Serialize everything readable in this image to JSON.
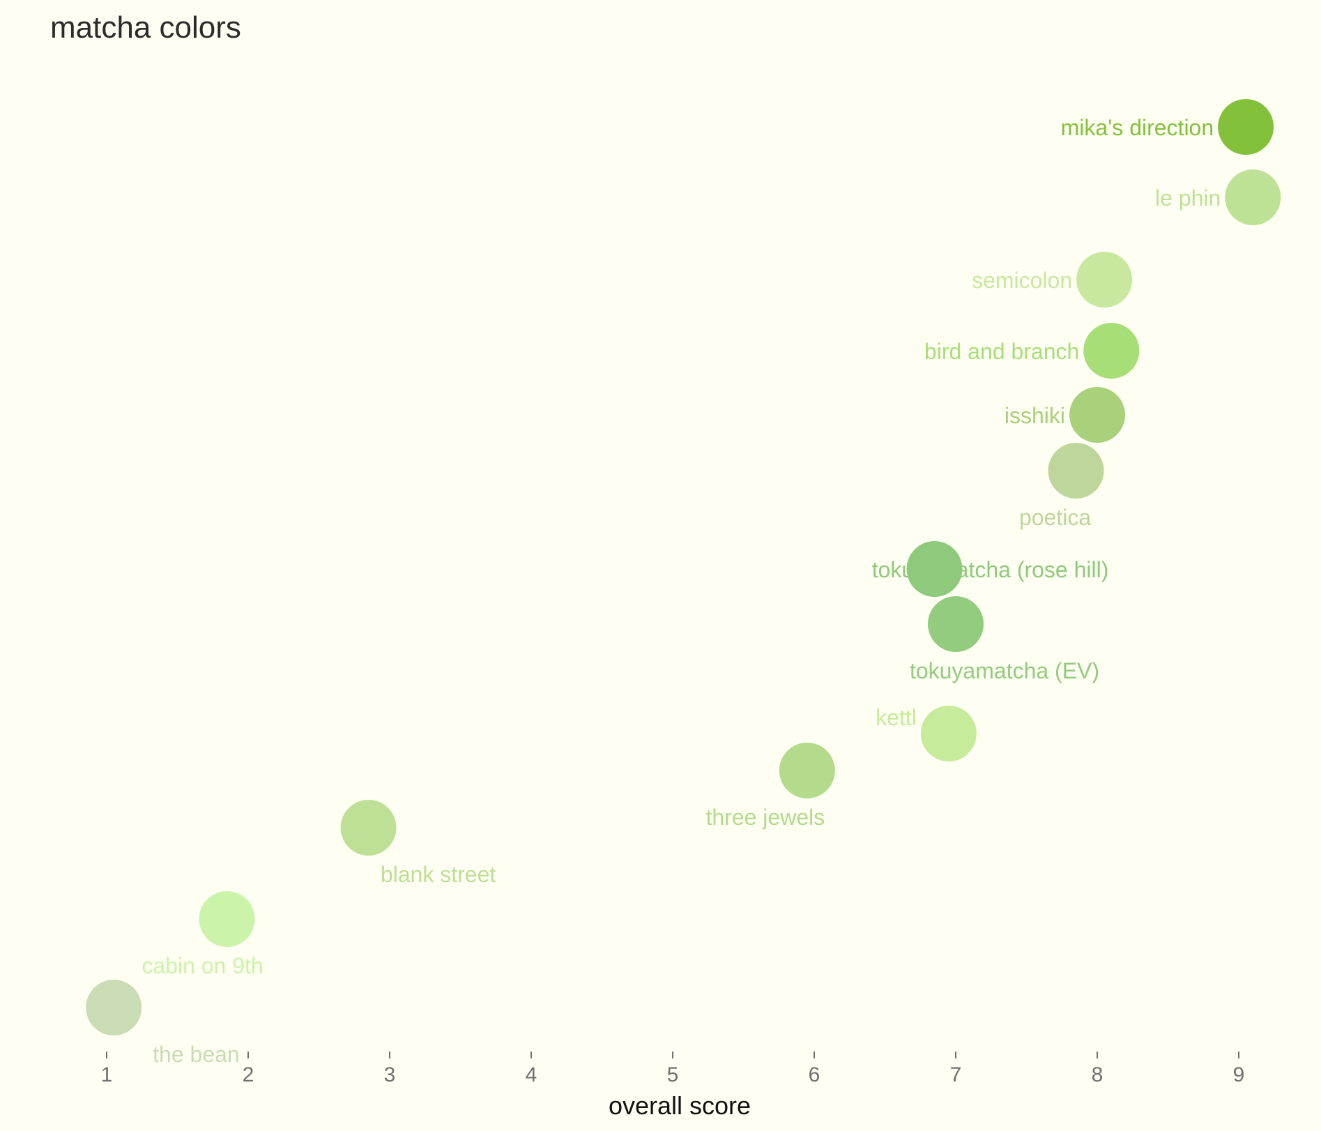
{
  "chart_data": {
    "type": "scatter",
    "title": "matcha colors",
    "xlabel": "overall score",
    "ylabel": "",
    "xlim": [
      0.4,
      9.5
    ],
    "xticks": [
      "1",
      "2",
      "3",
      "4",
      "5",
      "6",
      "7",
      "8",
      "9"
    ],
    "grid": false,
    "legend": "none",
    "points": [
      {
        "label": "mika's direction",
        "x": 9.05,
        "color": "#84c13b",
        "label_pos": "left"
      },
      {
        "label": "le phin",
        "x": 9.1,
        "color": "#bde296",
        "label_pos": "left"
      },
      {
        "label": "semicolon",
        "x": 8.05,
        "color": "#c8e8a0",
        "label_pos": "left"
      },
      {
        "label": "bird and branch",
        "x": 8.1,
        "color": "#a8de78",
        "label_pos": "left"
      },
      {
        "label": "isshiki",
        "x": 8.0,
        "color": "#a9d07b",
        "label_pos": "left"
      },
      {
        "label": "poetica",
        "x": 7.85,
        "color": "#bed69c",
        "label_pos": "below-left"
      },
      {
        "label": "tokuyamatcha (rose hill)",
        "x": 6.85,
        "color": "#8fca7c",
        "label_pos": "center"
      },
      {
        "label": "tokuyamatcha (EV)",
        "x": 7.0,
        "color": "#93cc7e",
        "label_pos": "below"
      },
      {
        "label": "kettl",
        "x": 6.95,
        "color": "#c6eb9a",
        "label_pos": "above-left"
      },
      {
        "label": "three jewels",
        "x": 5.95,
        "color": "#b4da8c",
        "label_pos": "below-left"
      },
      {
        "label": "blank street",
        "x": 2.85,
        "color": "#bde096",
        "label_pos": "below-right"
      },
      {
        "label": "cabin on 9th",
        "x": 1.85,
        "color": "#ccf3aa",
        "label_pos": "below"
      },
      {
        "label": "the bean",
        "x": 1.05,
        "color": "#cadcb4",
        "label_pos": "below-right"
      }
    ]
  }
}
